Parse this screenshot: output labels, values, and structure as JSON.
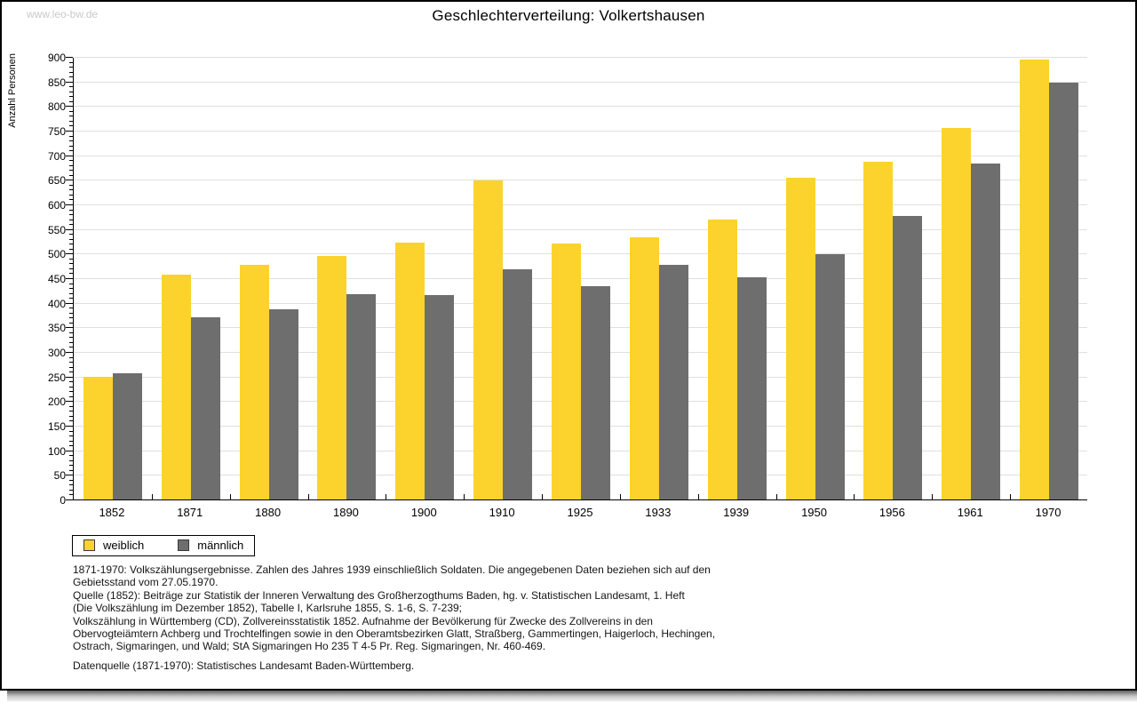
{
  "watermark": "www.leo-bw.de",
  "title": "Geschlechterverteilung: Volkertshausen",
  "colors": {
    "weiblich": "#FCD32C",
    "maennlich": "#6E6E6E",
    "grid": "#E0E0E0",
    "axis": "#000000",
    "watermark": "#C9C9C9"
  },
  "chart_data": {
    "type": "bar",
    "title": "Geschlechterverteilung: Volkertshausen",
    "ylabel": "Anzahl Personen",
    "xlabel": "",
    "ylim": [
      0,
      900
    ],
    "ytick_step": 50,
    "yticks_minor_step": 10,
    "grid": true,
    "legend_position": "bottom-left",
    "categories": [
      "1852",
      "1871",
      "1880",
      "1890",
      "1900",
      "1910",
      "1925",
      "1933",
      "1939",
      "1950",
      "1956",
      "1961",
      "1970"
    ],
    "series": [
      {
        "name": "weiblich",
        "color": "#FCD32C",
        "values": [
          250,
          458,
          478,
          496,
          523,
          648,
          521,
          534,
          569,
          655,
          687,
          755,
          895
        ]
      },
      {
        "name": "männlich",
        "color": "#6E6E6E",
        "values": [
          256,
          370,
          386,
          417,
          415,
          469,
          434,
          478,
          451,
          499,
          576,
          684,
          848
        ]
      }
    ]
  },
  "legend": {
    "items": [
      {
        "label": "weiblich",
        "color": "#FCD32C"
      },
      {
        "label": "männlich",
        "color": "#6E6E6E"
      }
    ]
  },
  "footnote": {
    "lines": [
      "1871-1970: Volkszählungsergebnisse. Zahlen des Jahres 1939 einschließlich Soldaten. Die angegebenen Daten beziehen sich auf den",
      "Gebietsstand vom 27.05.1970.",
      "Quelle (1852): Beiträge zur Statistik der Inneren Verwaltung des Großherzogthums Baden, hg. v. Statistischen Landesamt, 1. Heft",
      "(Die Volkszählung im Dezember 1852), Tabelle I, Karlsruhe 1855, S. 1-6, S. 7-239;",
      "Volkszählung in Württemberg (CD), Zollvereinsstatistik 1852. Aufnahme der Bevölkerung für Zwecke des Zollvereins in den",
      "Obervogteiämtern Achberg und Trochtelfingen sowie in den Oberamtsbezirken Glatt, Straßberg, Gammertingen, Haigerloch, Hechingen,",
      "Ostrach, Sigmaringen, und Wald; StA Sigmaringen Ho 235 T 4-5 Pr. Reg. Sigmaringen, Nr. 460-469."
    ],
    "datasource": "Datenquelle (1871-1970): Statistisches Landesamt Baden-Württemberg."
  }
}
